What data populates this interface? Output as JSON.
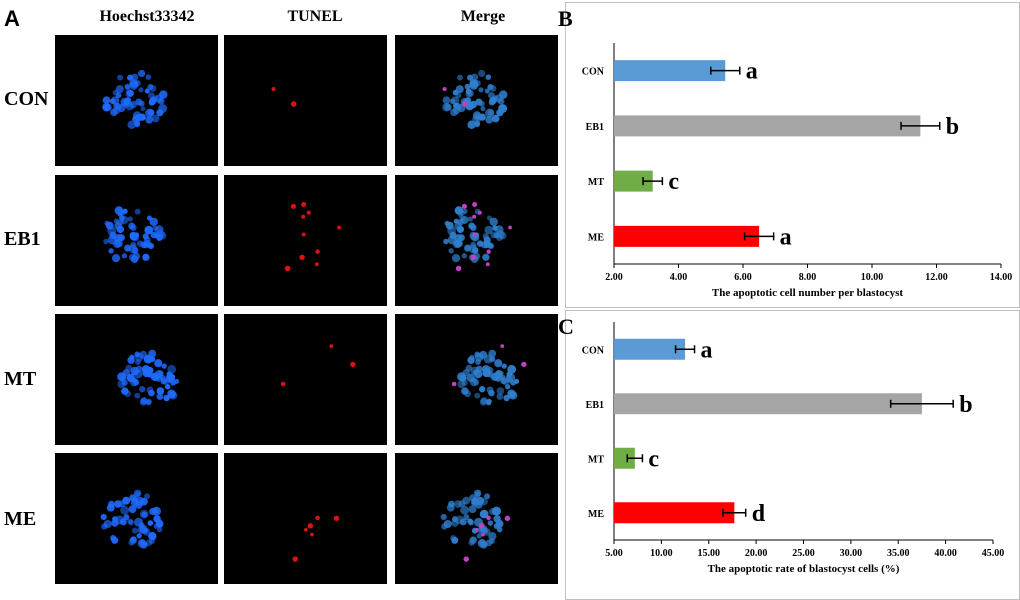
{
  "panel_a": {
    "letter": "A",
    "columns": [
      "Hoechst33342",
      "TUNEL",
      "Merge"
    ],
    "rows": [
      "CON",
      "EB1",
      "MT",
      "ME"
    ]
  },
  "chart_data": [
    {
      "panel": "B",
      "type": "bar",
      "orientation": "horizontal",
      "categories": [
        "CON",
        "EB1",
        "MT",
        "ME"
      ],
      "values": [
        5.45,
        11.5,
        3.2,
        6.5
      ],
      "errors": [
        0.45,
        0.6,
        0.3,
        0.45
      ],
      "significance": [
        "a",
        "b",
        "c",
        "a"
      ],
      "colors": [
        "#5b9bd5",
        "#a5a5a5",
        "#70ad47",
        "#ff0000"
      ],
      "xlabel": "The apoptotic cell number per blastocyst",
      "ylabel": "",
      "xlim": [
        2.0,
        14.0
      ],
      "xticks": [
        "2.00",
        "4.00",
        "6.00",
        "8.00",
        "10.00",
        "12.00",
        "14.00"
      ],
      "grid": false
    },
    {
      "panel": "C",
      "type": "bar",
      "orientation": "horizontal",
      "categories": [
        "CON",
        "EB1",
        "MT",
        "ME"
      ],
      "values": [
        12.5,
        37.5,
        7.2,
        17.7
      ],
      "errors": [
        1.0,
        3.3,
        0.8,
        1.2
      ],
      "significance": [
        "a",
        "b",
        "c",
        "d"
      ],
      "colors": [
        "#5b9bd5",
        "#a5a5a5",
        "#70ad47",
        "#ff0000"
      ],
      "xlabel": "The apoptotic rate of blastocyst cells (%)",
      "ylabel": "",
      "xlim": [
        5.0,
        45.0
      ],
      "xticks": [
        "5.00",
        "10.00",
        "15.00",
        "20.00",
        "25.00",
        "30.00",
        "35.00",
        "40.00",
        "45.00"
      ],
      "grid": false
    }
  ]
}
